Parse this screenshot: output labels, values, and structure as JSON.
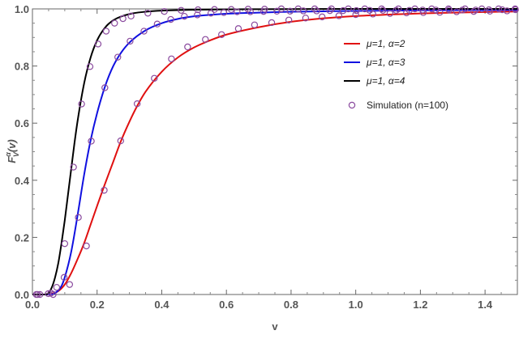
{
  "chart_data": {
    "type": "line",
    "title": "",
    "xlabel": "v",
    "ylabel": "F",
    "ylabel_sup": "α",
    "ylabel_sub": "V",
    "ylabel_arg": "(v)",
    "xlim": [
      0,
      1.5
    ],
    "ylim": [
      0,
      1.0
    ],
    "xticks": [
      "0.0",
      "0.2",
      "0.4",
      "0.6",
      "0.8",
      "1.0",
      "1.2",
      "1.4"
    ],
    "xtick_values": [
      0,
      0.2,
      0.4,
      0.6,
      0.8,
      1.0,
      1.2,
      1.4
    ],
    "yticks": [
      "0.0",
      "0.2",
      "0.4",
      "0.6",
      "0.8",
      "1.0"
    ],
    "ytick_values": [
      0,
      0.2,
      0.4,
      0.6,
      0.8,
      1.0
    ],
    "grid": false,
    "legend_position": "top-right",
    "series": [
      {
        "name": "μ=1, α=2",
        "color": "#e01010",
        "curve": [
          [
            0.04,
            0
          ],
          [
            0.06,
            0.003
          ],
          [
            0.08,
            0.012
          ],
          [
            0.1,
            0.035
          ],
          [
            0.12,
            0.075
          ],
          [
            0.14,
            0.125
          ],
          [
            0.16,
            0.18
          ],
          [
            0.18,
            0.245
          ],
          [
            0.2,
            0.31
          ],
          [
            0.222,
            0.38
          ],
          [
            0.25,
            0.465
          ],
          [
            0.273,
            0.535
          ],
          [
            0.3,
            0.605
          ],
          [
            0.324,
            0.66
          ],
          [
            0.35,
            0.71
          ],
          [
            0.4,
            0.78
          ],
          [
            0.45,
            0.83
          ],
          [
            0.5,
            0.865
          ],
          [
            0.55,
            0.89
          ],
          [
            0.6,
            0.91
          ],
          [
            0.7,
            0.936
          ],
          [
            0.8,
            0.955
          ],
          [
            0.9,
            0.967
          ],
          [
            1.0,
            0.975
          ],
          [
            1.1,
            0.98
          ],
          [
            1.2,
            0.984
          ],
          [
            1.3,
            0.987
          ],
          [
            1.4,
            0.989
          ],
          [
            1.5,
            0.991
          ]
        ]
      },
      {
        "name": "μ=1, α=3",
        "color": "#1010e0",
        "curve": [
          [
            0.05,
            0
          ],
          [
            0.07,
            0.005
          ],
          [
            0.09,
            0.03
          ],
          [
            0.1,
            0.06
          ],
          [
            0.12,
            0.15
          ],
          [
            0.14,
            0.28
          ],
          [
            0.16,
            0.42
          ],
          [
            0.18,
            0.54
          ],
          [
            0.2,
            0.635
          ],
          [
            0.225,
            0.73
          ],
          [
            0.25,
            0.8
          ],
          [
            0.275,
            0.848
          ],
          [
            0.3,
            0.882
          ],
          [
            0.35,
            0.925
          ],
          [
            0.4,
            0.95
          ],
          [
            0.45,
            0.965
          ],
          [
            0.5,
            0.974
          ],
          [
            0.6,
            0.983
          ],
          [
            0.7,
            0.987
          ],
          [
            0.8,
            0.99
          ],
          [
            1.0,
            0.993
          ],
          [
            1.2,
            0.995
          ],
          [
            1.5,
            0.996
          ]
        ]
      },
      {
        "name": "μ=1, α=4",
        "color": "#000000",
        "curve": [
          [
            0.04,
            0
          ],
          [
            0.05,
            0.005
          ],
          [
            0.06,
            0.025
          ],
          [
            0.07,
            0.06
          ],
          [
            0.08,
            0.11
          ],
          [
            0.09,
            0.18
          ],
          [
            0.1,
            0.26
          ],
          [
            0.11,
            0.35
          ],
          [
            0.12,
            0.44
          ],
          [
            0.13,
            0.53
          ],
          [
            0.14,
            0.61
          ],
          [
            0.16,
            0.74
          ],
          [
            0.18,
            0.83
          ],
          [
            0.2,
            0.89
          ],
          [
            0.225,
            0.935
          ],
          [
            0.25,
            0.96
          ],
          [
            0.3,
            0.982
          ],
          [
            0.35,
            0.99
          ],
          [
            0.4,
            0.994
          ],
          [
            0.5,
            0.997
          ],
          [
            0.7,
            0.999
          ],
          [
            1.0,
            1.0
          ],
          [
            1.5,
            1.0
          ]
        ]
      }
    ],
    "simulation": {
      "name": "Simulation (n=100)",
      "color": "#8a4a9e",
      "points": [
        [
          0.012,
          0
        ],
        [
          0.064,
          0
        ],
        [
          0.115,
          0.035
        ],
        [
          0.167,
          0.17
        ],
        [
          0.222,
          0.365
        ],
        [
          0.273,
          0.538
        ],
        [
          0.324,
          0.668
        ],
        [
          0.377,
          0.757
        ],
        [
          0.43,
          0.825
        ],
        [
          0.48,
          0.867
        ],
        [
          0.535,
          0.893
        ],
        [
          0.585,
          0.91
        ],
        [
          0.637,
          0.931
        ],
        [
          0.687,
          0.944
        ],
        [
          0.74,
          0.952
        ],
        [
          0.793,
          0.961
        ],
        [
          0.845,
          0.968
        ],
        [
          0.896,
          0.972
        ],
        [
          0.948,
          0.976
        ],
        [
          1.0,
          0.98
        ],
        [
          1.053,
          0.982
        ],
        [
          1.106,
          0.984
        ],
        [
          1.157,
          0.986
        ],
        [
          1.209,
          0.987
        ],
        [
          1.26,
          0.988
        ],
        [
          1.312,
          0.99
        ],
        [
          1.365,
          0.991
        ],
        [
          1.415,
          0.992
        ],
        [
          1.468,
          0.993
        ],
        [
          0.016,
          0
        ],
        [
          0.057,
          0.005
        ],
        [
          0.098,
          0.06
        ],
        [
          0.142,
          0.27
        ],
        [
          0.182,
          0.537
        ],
        [
          0.224,
          0.724
        ],
        [
          0.264,
          0.831
        ],
        [
          0.302,
          0.887
        ],
        [
          0.345,
          0.922
        ],
        [
          0.386,
          0.947
        ],
        [
          0.428,
          0.963
        ],
        [
          0.47,
          0.974
        ],
        [
          0.51,
          0.979
        ],
        [
          0.552,
          0.985
        ],
        [
          0.592,
          0.987
        ],
        [
          0.633,
          0.99
        ],
        [
          0.674,
          0.99
        ],
        [
          0.715,
          0.991
        ],
        [
          0.756,
          0.992
        ],
        [
          0.797,
          0.992
        ],
        [
          0.838,
          0.993
        ],
        [
          0.879,
          0.993
        ],
        [
          0.92,
          0.994
        ],
        [
          0.961,
          0.994
        ],
        [
          1.002,
          0.994
        ],
        [
          1.043,
          0.995
        ],
        [
          1.084,
          0.995
        ],
        [
          1.125,
          0.995
        ],
        [
          1.166,
          0.995
        ],
        [
          1.207,
          0.996
        ],
        [
          1.248,
          0.996
        ],
        [
          1.289,
          0.996
        ],
        [
          1.33,
          0.996
        ],
        [
          1.371,
          0.996
        ],
        [
          1.412,
          0.997
        ],
        [
          1.453,
          0.997
        ],
        [
          1.494,
          0.997
        ],
        [
          0.023,
          0
        ],
        [
          0.049,
          0.003
        ],
        [
          0.075,
          0.025
        ],
        [
          0.1,
          0.178
        ],
        [
          0.127,
          0.446
        ],
        [
          0.152,
          0.667
        ],
        [
          0.178,
          0.798
        ],
        [
          0.203,
          0.877
        ],
        [
          0.228,
          0.922
        ],
        [
          0.254,
          0.95
        ],
        [
          0.28,
          0.966
        ],
        [
          0.305,
          0.975
        ],
        [
          0.357,
          0.985
        ],
        [
          0.408,
          0.991
        ],
        [
          0.46,
          0.995
        ],
        [
          0.512,
          0.997
        ],
        [
          0.563,
          0.998
        ],
        [
          0.615,
          0.998
        ],
        [
          0.667,
          0.999
        ],
        [
          0.718,
          0.999
        ],
        [
          0.77,
          1.0
        ],
        [
          0.822,
          1.0
        ],
        [
          0.873,
          1.0
        ],
        [
          0.925,
          1.0
        ],
        [
          0.977,
          1.0
        ],
        [
          1.028,
          1.0
        ],
        [
          1.08,
          1.0
        ],
        [
          1.132,
          1.0
        ],
        [
          1.183,
          1.0
        ],
        [
          1.235,
          1.0
        ],
        [
          1.287,
          1.0
        ],
        [
          1.338,
          1.0
        ],
        [
          1.39,
          1.0
        ],
        [
          1.442,
          1.0
        ],
        [
          1.493,
          1.0
        ]
      ]
    }
  }
}
